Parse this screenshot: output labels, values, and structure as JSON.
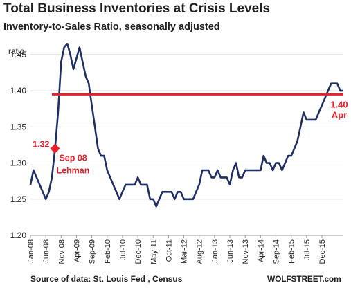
{
  "chart_data": {
    "type": "line",
    "title": "Total Business Inventories at Crisis Levels",
    "subtitle": "Inventory-to-Sales Ratio, seasonally adjusted",
    "ylabel": "ratio",
    "xlabel": "",
    "ylim": [
      1.2,
      1.47
    ],
    "yticks": [
      "1.20",
      "1.25",
      "1.30",
      "1.35",
      "1.40",
      "1.45"
    ],
    "ytick_values": [
      1.2,
      1.25,
      1.3,
      1.35,
      1.4,
      1.45
    ],
    "xticks": [
      "Jan-08",
      "Jun-08",
      "Nov-08",
      "Apr-09",
      "Sep-09",
      "Feb-10",
      "Jul-10",
      "Dec-10",
      "May-11",
      "Oct-11",
      "Mar-12",
      "Aug-12",
      "Jan-13",
      "Jun-13",
      "Nov-13",
      "Apr-14",
      "Sep-14",
      "Feb-15",
      "Jul-15",
      "Dec-15"
    ],
    "xtick_index": [
      0,
      5,
      10,
      15,
      20,
      25,
      30,
      35,
      40,
      45,
      50,
      55,
      60,
      65,
      70,
      75,
      80,
      85,
      90,
      95
    ],
    "grid": true,
    "series": [
      {
        "color": "#1f2f66",
        "x_start": "Jan-08",
        "values": [
          1.27,
          1.29,
          1.28,
          1.27,
          1.26,
          1.25,
          1.26,
          1.28,
          1.32,
          1.37,
          1.44,
          1.46,
          1.465,
          1.45,
          1.43,
          1.445,
          1.46,
          1.44,
          1.42,
          1.41,
          1.38,
          1.35,
          1.32,
          1.31,
          1.31,
          1.29,
          1.28,
          1.27,
          1.26,
          1.25,
          1.26,
          1.27,
          1.27,
          1.27,
          1.27,
          1.28,
          1.27,
          1.27,
          1.27,
          1.25,
          1.25,
          1.24,
          1.25,
          1.26,
          1.26,
          1.26,
          1.26,
          1.25,
          1.26,
          1.26,
          1.25,
          1.25,
          1.25,
          1.25,
          1.26,
          1.27,
          1.29,
          1.29,
          1.29,
          1.28,
          1.28,
          1.29,
          1.28,
          1.28,
          1.28,
          1.27,
          1.29,
          1.3,
          1.28,
          1.28,
          1.29,
          1.29,
          1.29,
          1.29,
          1.29,
          1.29,
          1.31,
          1.3,
          1.3,
          1.29,
          1.3,
          1.3,
          1.29,
          1.3,
          1.31,
          1.31,
          1.32,
          1.33,
          1.35,
          1.37,
          1.36,
          1.36,
          1.36,
          1.36,
          1.37,
          1.38,
          1.39,
          1.4,
          1.41,
          1.41,
          1.41,
          1.4,
          1.4
        ]
      }
    ],
    "reference_line": {
      "value": 1.395,
      "color": "#e8202a"
    },
    "annotations": {
      "lehman_value": "1.32",
      "lehman_date": "Sep 08",
      "lehman_label": "Lehman",
      "lehman_index": 8,
      "lehman_y": 1.32,
      "apr_value": "1.40",
      "apr_label": "Apr",
      "annotation_color": "#e8202a"
    }
  },
  "footer": {
    "source": "Source of data: St. Louis Fed , Census",
    "brand": "WOLFSTREET.com"
  }
}
